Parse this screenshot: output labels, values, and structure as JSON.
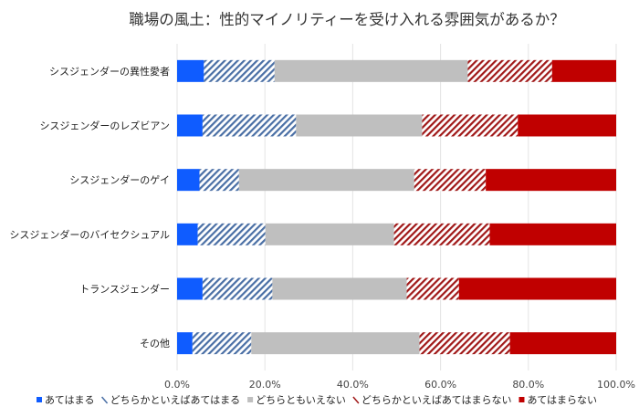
{
  "chart_data": {
    "type": "bar",
    "orientation": "horizontal",
    "stacked": "percent",
    "title": "職場の風土：性的マイノリティーを受け入れる雰囲気があるか？",
    "xlabel": "",
    "ylabel": "",
    "xlim": [
      0,
      100
    ],
    "x_ticks": [
      "0.0%",
      "20.0%",
      "40.0%",
      "60.0%",
      "80.0%",
      "100.0%"
    ],
    "grid": "vertical",
    "legend_position": "bottom",
    "categories": [
      "シスジェンダーの異性愛者",
      "シスジェンダーのレズビアン",
      "シスジェンダーのゲイ",
      "シスジェンダーのバイセクシュアル",
      "トランスジェンダー",
      "その他"
    ],
    "series": [
      {
        "name": "あてはまる",
        "color": "#0f5cff",
        "pattern": "solid",
        "values": [
          6.1,
          5.8,
          5.1,
          4.7,
          5.8,
          3.5
        ]
      },
      {
        "name": "どちらかといえばあてはまる",
        "color": "#4a6fa5",
        "pattern": "hatch",
        "values": [
          16.1,
          21.3,
          9.0,
          15.4,
          15.9,
          13.4
        ]
      },
      {
        "name": "どちらともいえない",
        "color": "#bfbfbf",
        "pattern": "solid",
        "values": [
          44.0,
          28.7,
          39.9,
          29.3,
          30.6,
          38.3
        ]
      },
      {
        "name": "どちらかといえばあてはまらない",
        "color": "#a01818",
        "pattern": "hatch",
        "values": [
          19.2,
          21.8,
          16.3,
          21.8,
          11.9,
          20.6
        ]
      },
      {
        "name": "あてはまらない",
        "color": "#c00000",
        "pattern": "solid",
        "values": [
          14.6,
          22.4,
          29.7,
          28.8,
          35.8,
          24.2
        ]
      }
    ]
  }
}
